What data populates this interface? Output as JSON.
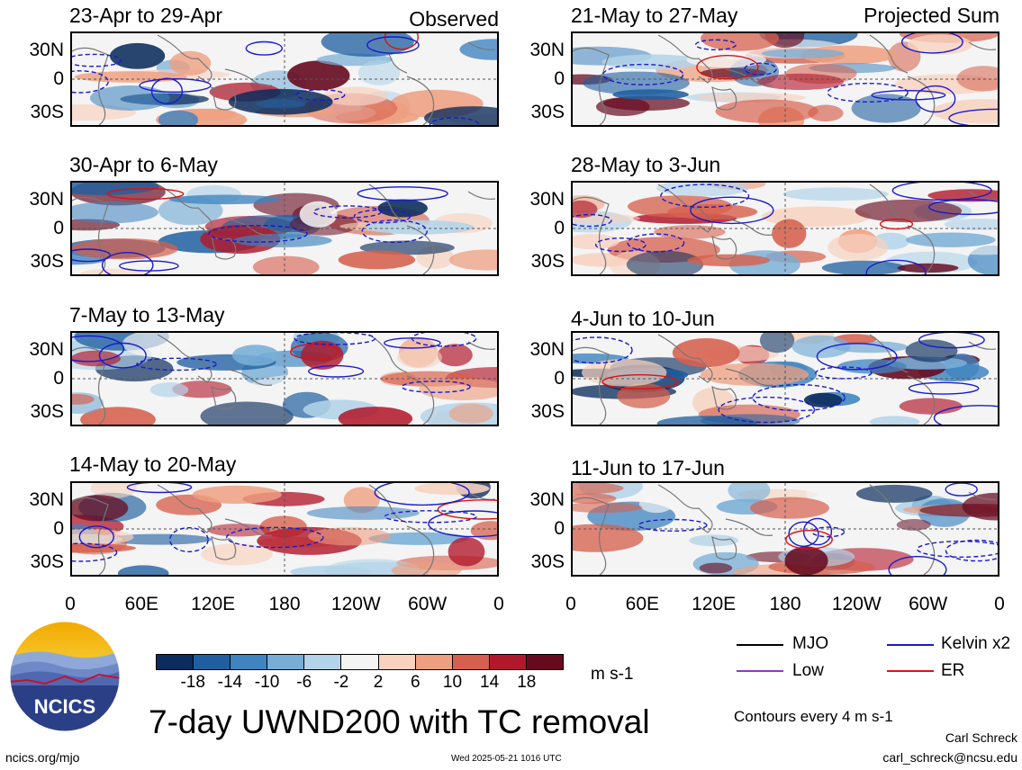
{
  "panels": [
    {
      "title": "23-Apr to 29-Apr",
      "tag": "Observed"
    },
    {
      "title": "30-Apr to 6-May",
      "tag": ""
    },
    {
      "title": "7-May to 13-May",
      "tag": ""
    },
    {
      "title": "14-May to 20-May",
      "tag": ""
    },
    {
      "title": "21-May to 27-May",
      "tag": "Projected Sum"
    },
    {
      "title": "28-May to 3-Jun",
      "tag": ""
    },
    {
      "title": "4-Jun to 10-Jun",
      "tag": ""
    },
    {
      "title": "11-Jun to 17-Jun",
      "tag": ""
    }
  ],
  "lat_labels": [
    "30N",
    "0",
    "30S"
  ],
  "lon_labels": [
    "0",
    "60E",
    "120E",
    "180",
    "120W",
    "60W",
    "0"
  ],
  "colorbar": {
    "ticks": [
      "-18",
      "-14",
      "-10",
      "-6",
      "-2",
      "2",
      "6",
      "10",
      "14",
      "18"
    ],
    "colors": [
      "#0b2c5c",
      "#1f5fa0",
      "#3f84c0",
      "#78aed6",
      "#b2d3e8",
      "#f4f4f4",
      "#f7d2bf",
      "#ee9f80",
      "#d6604d",
      "#b2182b",
      "#670a20"
    ],
    "unit": "m s-1"
  },
  "legend": {
    "items": [
      {
        "label": "MJO",
        "color": "#000000"
      },
      {
        "label": "Kelvin x2",
        "color": "#1a1acc"
      },
      {
        "label": "Low",
        "color": "#9933cc"
      },
      {
        "label": "ER",
        "color": "#dd1111"
      }
    ],
    "contour_note": "Contours every 4 m s-1"
  },
  "main_title": "7-day UWND200 with TC removal",
  "logo_text": "NCICS",
  "footer": {
    "left": "ncics.org/mjo",
    "center": "Wed 2025-05-21 1016 UTC",
    "right_name": "Carl Schreck",
    "right_email": "carl_schreck@ncsu.edu"
  }
}
